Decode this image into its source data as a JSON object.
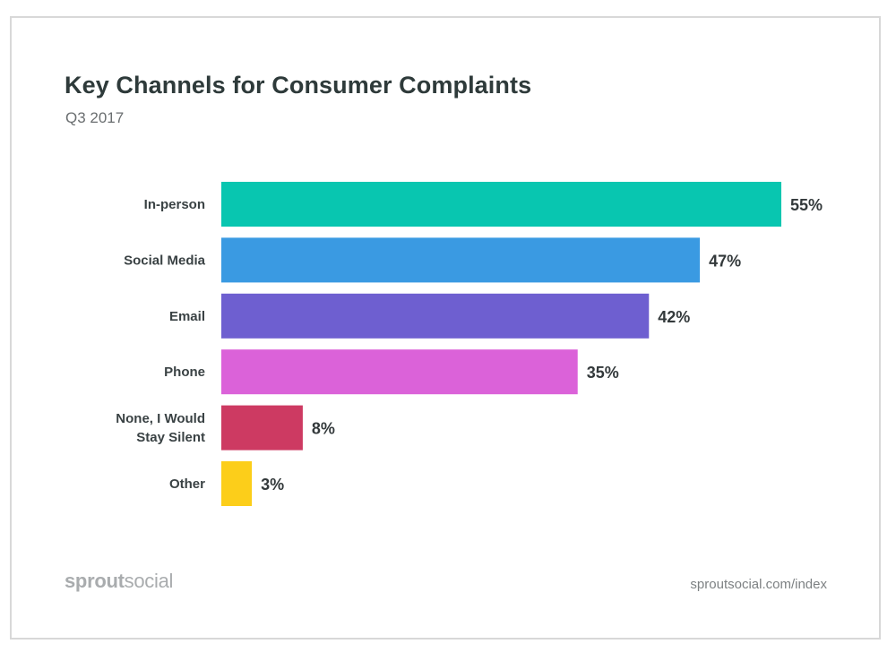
{
  "header": {
    "title": "Key Channels for Consumer Complaints",
    "subtitle": "Q3 2017"
  },
  "footer": {
    "brand_bold": "sprout",
    "brand_light": "social",
    "url": "sproutsocial.com/index"
  },
  "chart_data": {
    "type": "bar",
    "orientation": "horizontal",
    "title": "Key Channels for Consumer Complaints",
    "subtitle": "Q3 2017",
    "categories": [
      "In-person",
      "Social Media",
      "Email",
      "Phone",
      "None, I Would Stay Silent",
      "Other"
    ],
    "category_lines": [
      [
        "In-person"
      ],
      [
        "Social Media"
      ],
      [
        "Email"
      ],
      [
        "Phone"
      ],
      [
        "None, I Would",
        "Stay Silent"
      ],
      [
        "Other"
      ]
    ],
    "values": [
      55,
      47,
      42,
      35,
      8,
      3
    ],
    "value_labels": [
      "55%",
      "47%",
      "42%",
      "35%",
      "8%",
      "3%"
    ],
    "colors": [
      "#08c6b0",
      "#3a9ae2",
      "#6e5fd0",
      "#db62d9",
      "#cd3a62",
      "#fcce1a"
    ],
    "xlim": [
      0,
      55
    ],
    "unit": "%",
    "grid": false,
    "legend": "none"
  }
}
